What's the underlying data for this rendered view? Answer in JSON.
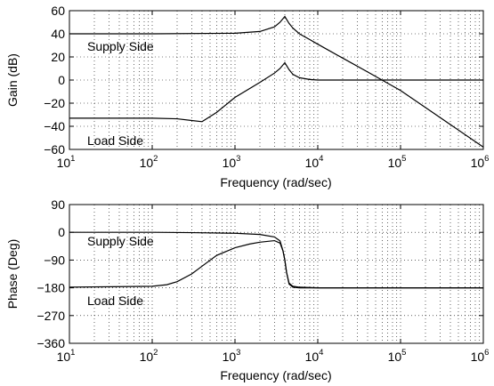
{
  "chart_data": [
    {
      "type": "line",
      "xscale": "log",
      "xlim": [
        10,
        1000000
      ],
      "ylim": [
        -60,
        60
      ],
      "yticks": [
        -60,
        -40,
        -20,
        0,
        20,
        40,
        60
      ],
      "xticks": [
        {
          "base": "10",
          "exp": "1"
        },
        {
          "base": "10",
          "exp": "2"
        },
        {
          "base": "10",
          "exp": "3"
        },
        {
          "base": "10",
          "exp": "4"
        },
        {
          "base": "10",
          "exp": "5"
        },
        {
          "base": "10",
          "exp": "6"
        }
      ],
      "grid": true,
      "xlabel": "Frequency (rad/sec)",
      "ylabel": "Gain (dB)",
      "annotations": [
        "Supply Side",
        "Load Side"
      ],
      "series": [
        {
          "name": "Supply Side",
          "x": [
            10,
            100,
            1000,
            2000,
            3000,
            3500,
            4000,
            4500,
            5000,
            6000,
            8000,
            10000,
            20000,
            40000,
            100000,
            1000000
          ],
          "y": [
            40,
            40,
            40.5,
            42,
            46,
            50,
            55,
            49,
            45,
            40,
            35,
            31,
            19,
            7,
            -9,
            -58
          ]
        },
        {
          "name": "Load Side",
          "x": [
            10,
            100,
            200,
            300,
            400,
            600,
            1000,
            2000,
            3000,
            3500,
            4000,
            4500,
            5000,
            6000,
            8000,
            10000,
            20000,
            40000,
            100000,
            1000000
          ],
          "y": [
            -33,
            -33,
            -33.5,
            -35,
            -36,
            -28,
            -15,
            -2,
            6,
            10,
            15,
            9,
            5,
            2,
            0.5,
            0,
            0,
            0,
            0,
            0
          ]
        }
      ]
    },
    {
      "type": "line",
      "xscale": "log",
      "xlim": [
        10,
        1000000
      ],
      "ylim": [
        -360,
        90
      ],
      "yticks": [
        -360,
        -270,
        -180,
        -90,
        0,
        90
      ],
      "xticks": [
        {
          "base": "10",
          "exp": "1"
        },
        {
          "base": "10",
          "exp": "2"
        },
        {
          "base": "10",
          "exp": "3"
        },
        {
          "base": "10",
          "exp": "4"
        },
        {
          "base": "10",
          "exp": "5"
        },
        {
          "base": "10",
          "exp": "6"
        }
      ],
      "grid": true,
      "xlabel": "Frequency (rad/sec)",
      "ylabel": "Phase (Deg)",
      "annotations": [
        "Supply Side",
        "Load Side"
      ],
      "series": [
        {
          "name": "Supply Side",
          "x": [
            10,
            100,
            300,
            1000,
            2000,
            3000,
            3500,
            3800,
            4000,
            4200,
            4500,
            5000,
            6000,
            10000,
            100000,
            1000000
          ],
          "y": [
            0,
            0,
            -1,
            -3,
            -7,
            -15,
            -28,
            -60,
            -90,
            -130,
            -165,
            -175,
            -178,
            -180,
            -180,
            -180
          ]
        },
        {
          "name": "Load Side",
          "x": [
            10,
            100,
            150,
            200,
            300,
            400,
            600,
            1000,
            1500,
            2000,
            3000,
            3500,
            3800,
            4000,
            4200,
            4500,
            5000,
            6000,
            10000,
            100000,
            1000000
          ],
          "y": [
            -178,
            -175,
            -170,
            -160,
            -135,
            -110,
            -75,
            -50,
            -38,
            -32,
            -27,
            -35,
            -60,
            -90,
            -130,
            -168,
            -178,
            -180,
            -180,
            -180,
            -180
          ]
        }
      ]
    }
  ]
}
